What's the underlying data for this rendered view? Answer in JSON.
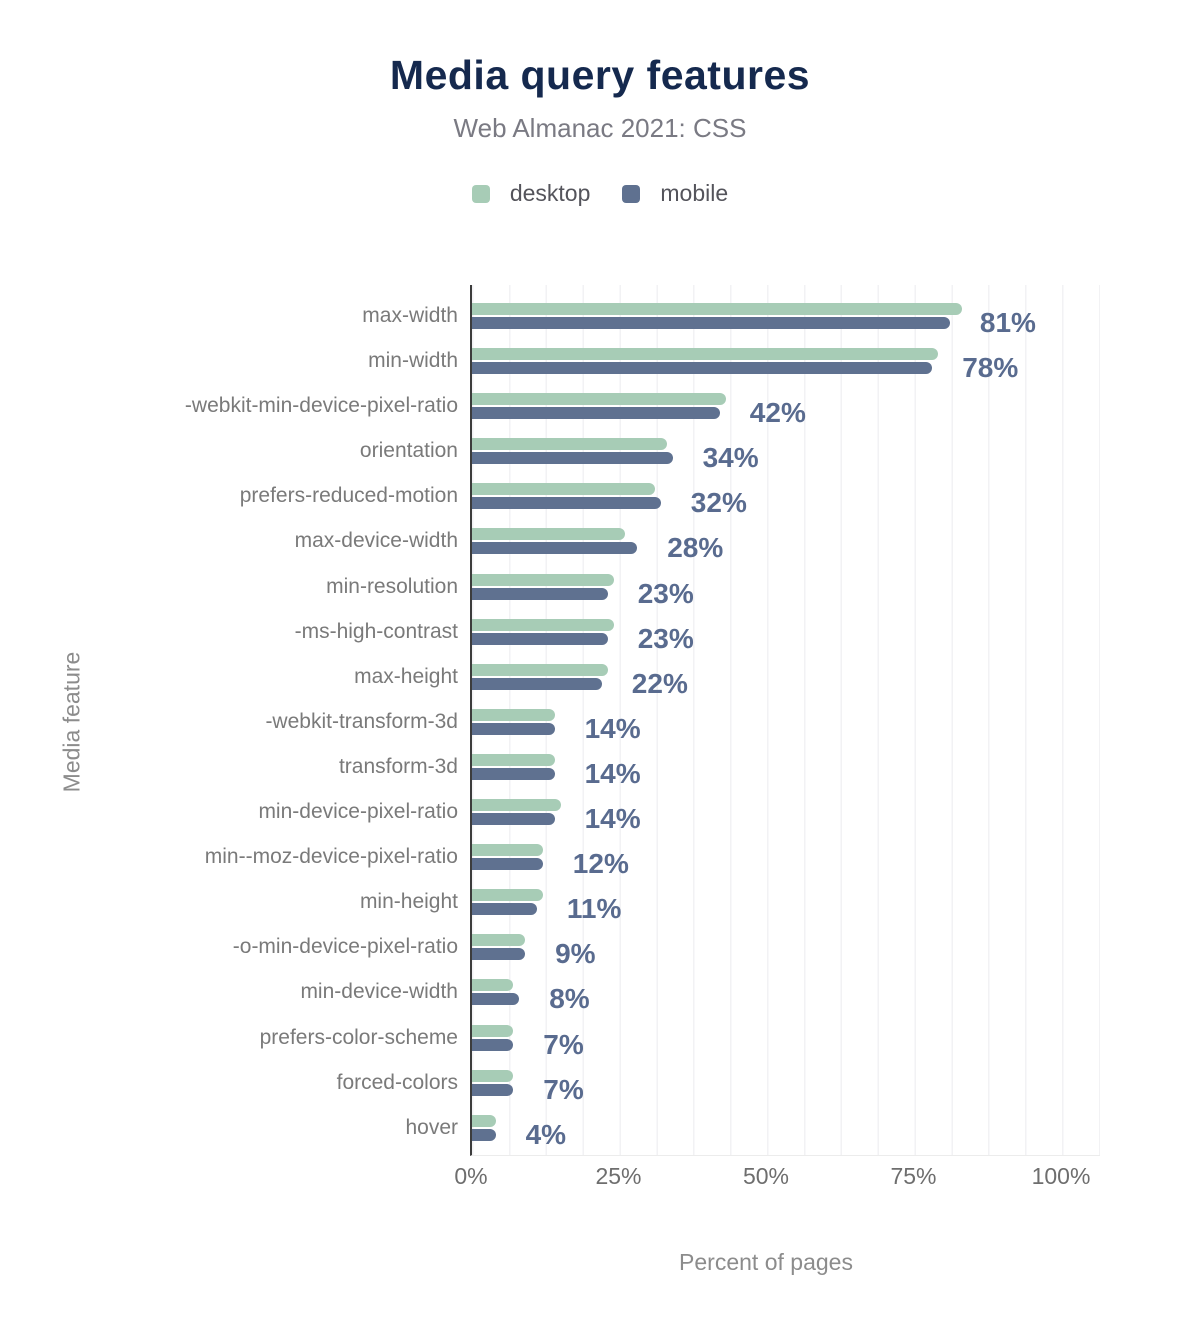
{
  "header": {
    "title": "Media query features",
    "subtitle": "Web Almanac 2021: CSS"
  },
  "colors": {
    "desktop_bar": "#a7ccb6",
    "mobile_bar": "#5f7190",
    "value_label_text": "#596b8f",
    "title_text": "#15294e",
    "axis_line": "#3c3c3c",
    "gridline": "#f2f2f4",
    "background": "#ffffff"
  },
  "chart_data": {
    "type": "bar",
    "orientation": "horizontal",
    "title": "Media query features",
    "subtitle": "Web Almanac 2021: CSS",
    "xlabel": "Percent of pages",
    "ylabel": "Media feature",
    "xlim": [
      0,
      100
    ],
    "x_ticks": [
      "0%",
      "25%",
      "50%",
      "75%",
      "100%"
    ],
    "grid": "vertical-minor-light",
    "legend_position": "top",
    "categories": [
      "max-width",
      "min-width",
      "-webkit-min-device-pixel-ratio",
      "orientation",
      "prefers-reduced-motion",
      "max-device-width",
      "min-resolution",
      "-ms-high-contrast",
      "max-height",
      "-webkit-transform-3d",
      "transform-3d",
      "min-device-pixel-ratio",
      "min--moz-device-pixel-ratio",
      "min-height",
      "-o-min-device-pixel-ratio",
      "min-device-width",
      "prefers-color-scheme",
      "forced-colors",
      "hover"
    ],
    "series": [
      {
        "name": "desktop",
        "color": "#a7ccb6",
        "values": [
          83,
          79,
          43,
          33,
          31,
          26,
          24,
          24,
          23,
          14,
          14,
          15,
          12,
          12,
          9,
          7,
          7,
          7,
          4
        ]
      },
      {
        "name": "mobile",
        "color": "#5f7190",
        "values": [
          81,
          78,
          42,
          34,
          32,
          28,
          23,
          23,
          22,
          14,
          14,
          14,
          12,
          11,
          9,
          8,
          7,
          7,
          4
        ]
      }
    ],
    "annotations": [
      "81%",
      "78%",
      "42%",
      "34%",
      "32%",
      "28%",
      "23%",
      "23%",
      "22%",
      "14%",
      "14%",
      "14%",
      "12%",
      "11%",
      "9%",
      "8%",
      "7%",
      "7%",
      "4%"
    ]
  }
}
